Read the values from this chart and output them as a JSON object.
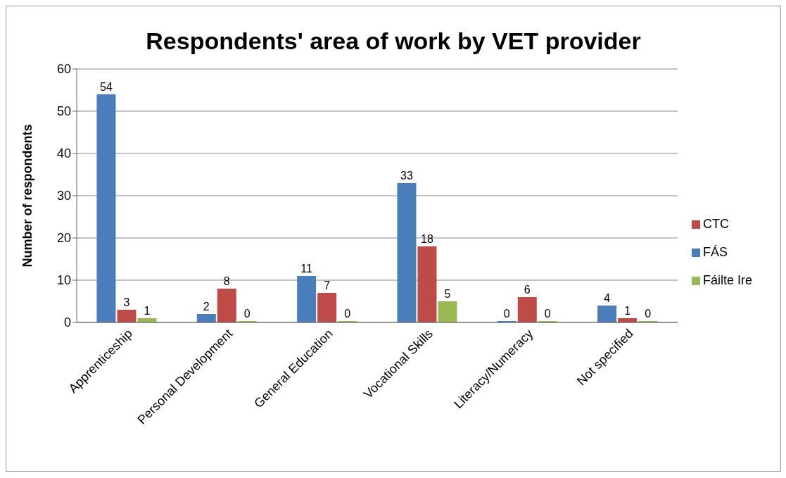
{
  "chart_data": {
    "type": "bar",
    "title": "Respondents' area of work by VET provider",
    "ylabel": "Number of respondents",
    "categories": [
      "Apprenticeship",
      "Personal Development",
      "General Education",
      "Vocational Skills",
      "Literacy/Numeracy",
      "Not specified"
    ],
    "series": [
      {
        "name": "FÁS",
        "color": "#4a7ebb",
        "values": [
          54,
          2,
          11,
          33,
          0,
          4
        ]
      },
      {
        "name": "CTC",
        "color": "#be4b48",
        "values": [
          3,
          8,
          7,
          18,
          6,
          1
        ]
      },
      {
        "name": "Fáilte Ire",
        "color": "#98b954",
        "values": [
          1,
          0,
          0,
          5,
          0,
          0
        ]
      }
    ],
    "ylim": [
      0,
      60
    ],
    "yticks": [
      0,
      10,
      20,
      30,
      40,
      50,
      60
    ],
    "grid": "y",
    "legend": "right",
    "data_labels": true
  }
}
